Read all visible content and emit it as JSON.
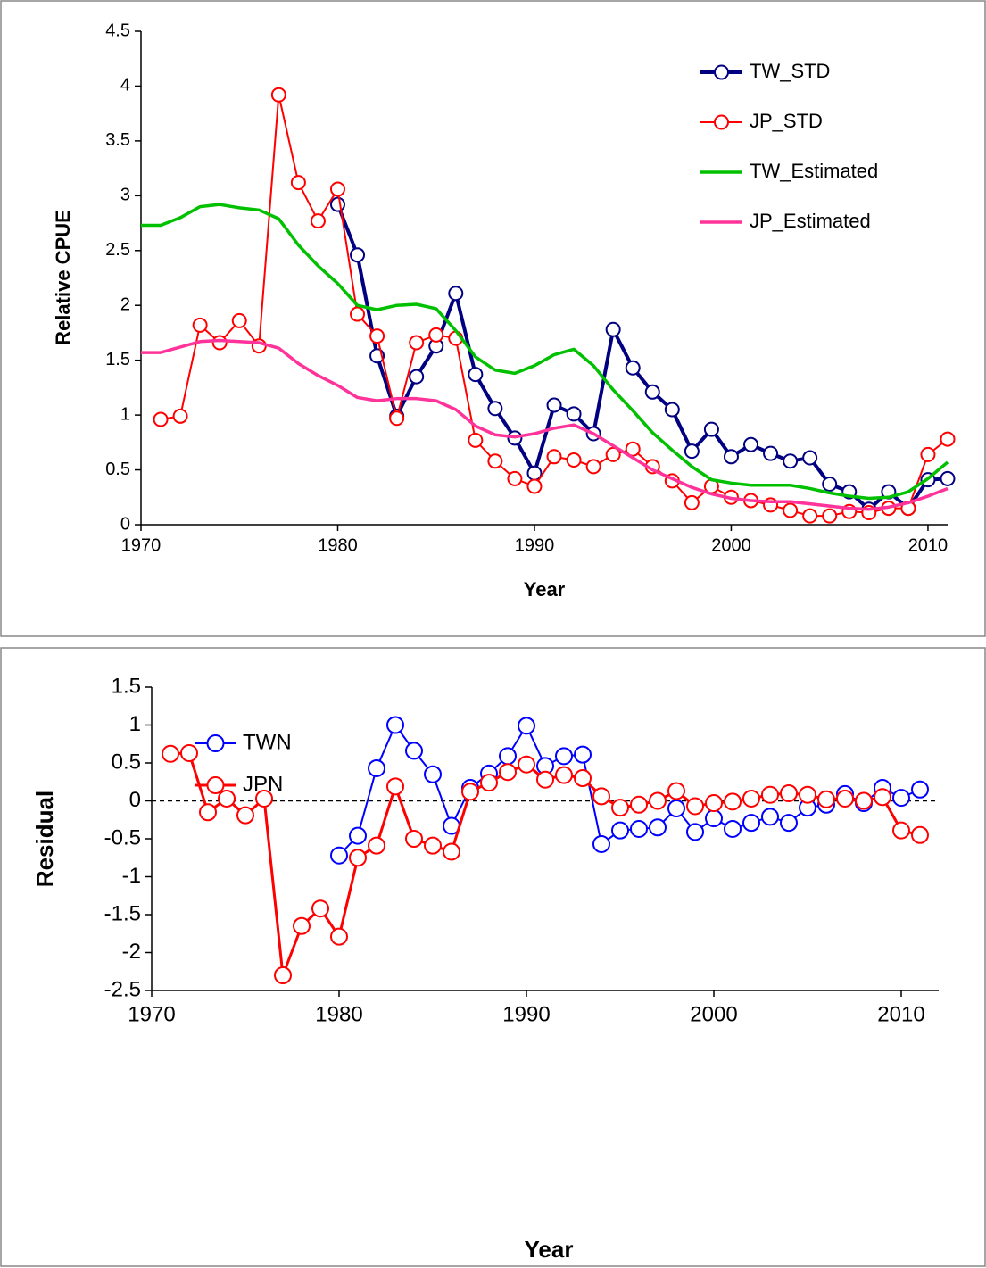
{
  "chart_data": [
    {
      "type": "line",
      "x_label": "Year",
      "y_label": "Relative CPUE",
      "x": [
        1970,
        1971,
        1972,
        1973,
        1974,
        1975,
        1976,
        1977,
        1978,
        1979,
        1980,
        1981,
        1982,
        1983,
        1984,
        1985,
        1986,
        1987,
        1988,
        1989,
        1990,
        1991,
        1992,
        1993,
        1994,
        1995,
        1996,
        1997,
        1998,
        1999,
        2000,
        2001,
        2002,
        2003,
        2004,
        2005,
        2006,
        2007,
        2008,
        2009,
        2010,
        2011
      ],
      "xlim": [
        1970,
        2011
      ],
      "xticks": [
        1970,
        1980,
        1990,
        2000,
        2010
      ],
      "ylim": [
        0,
        4.5
      ],
      "yticks": [
        0,
        0.5,
        1,
        1.5,
        2,
        2.5,
        3,
        3.5,
        4,
        4.5
      ],
      "legend": "upper right",
      "series": [
        {
          "name": "TW_STD",
          "color": "#000080",
          "marker": "circle",
          "values": [
            null,
            null,
            null,
            null,
            null,
            null,
            null,
            null,
            null,
            null,
            2.92,
            2.46,
            1.54,
            0.99,
            1.35,
            1.63,
            2.11,
            1.37,
            1.06,
            0.79,
            0.47,
            1.09,
            1.01,
            0.83,
            1.78,
            1.43,
            1.21,
            1.05,
            0.67,
            0.87,
            0.62,
            0.73,
            0.65,
            0.58,
            0.61,
            0.37,
            0.3,
            0.14,
            0.3,
            0.15,
            0.41,
            0.42
          ]
        },
        {
          "name": "JP_STD",
          "color": "#ff0000",
          "marker": "circle",
          "values": [
            null,
            0.96,
            0.99,
            1.82,
            1.66,
            1.86,
            1.63,
            3.92,
            3.12,
            2.77,
            3.06,
            1.92,
            1.72,
            0.97,
            1.66,
            1.73,
            1.7,
            0.77,
            0.58,
            0.42,
            0.35,
            0.62,
            0.59,
            0.53,
            0.64,
            0.69,
            0.53,
            0.4,
            0.2,
            0.35,
            0.25,
            0.22,
            0.18,
            0.13,
            0.08,
            0.08,
            0.12,
            0.11,
            0.15,
            0.15,
            0.64,
            0.78
          ]
        },
        {
          "name": "TW_Estimated",
          "color": "#00c000",
          "marker": "none",
          "values": [
            2.73,
            2.73,
            2.8,
            2.9,
            2.92,
            2.89,
            2.87,
            2.79,
            2.55,
            2.36,
            2.2,
            2.0,
            1.96,
            2.0,
            2.01,
            1.97,
            1.77,
            1.53,
            1.41,
            1.38,
            1.45,
            1.55,
            1.6,
            1.45,
            1.23,
            1.04,
            0.84,
            0.68,
            0.53,
            0.41,
            0.38,
            0.36,
            0.36,
            0.36,
            0.33,
            0.29,
            0.26,
            0.24,
            0.25,
            0.3,
            0.42,
            0.57
          ]
        },
        {
          "name": "JP_Estimated",
          "color": "#ff3399",
          "marker": "none",
          "values": [
            1.57,
            1.57,
            1.62,
            1.67,
            1.68,
            1.67,
            1.66,
            1.61,
            1.47,
            1.36,
            1.27,
            1.16,
            1.13,
            1.15,
            1.15,
            1.13,
            1.05,
            0.9,
            0.82,
            0.8,
            0.83,
            0.88,
            0.91,
            0.83,
            0.72,
            0.61,
            0.5,
            0.42,
            0.34,
            0.28,
            0.24,
            0.22,
            0.21,
            0.21,
            0.19,
            0.17,
            0.15,
            0.14,
            0.16,
            0.2,
            0.26,
            0.33
          ]
        }
      ]
    },
    {
      "type": "line",
      "x_label": "Year",
      "y_label": "Residual",
      "x": [
        1970,
        1971,
        1972,
        1973,
        1974,
        1975,
        1976,
        1977,
        1978,
        1979,
        1980,
        1981,
        1982,
        1983,
        1984,
        1985,
        1986,
        1987,
        1988,
        1989,
        1990,
        1991,
        1992,
        1993,
        1994,
        1995,
        1996,
        1997,
        1998,
        1999,
        2000,
        2001,
        2002,
        2003,
        2004,
        2005,
        2006,
        2007,
        2008,
        2009,
        2010,
        2011
      ],
      "xlim": [
        1970,
        2012
      ],
      "xticks": [
        1970,
        1980,
        1990,
        2000,
        2010
      ],
      "ylim": [
        -2.5,
        1.5
      ],
      "yticks": [
        -2.5,
        -2,
        -1.5,
        -1,
        -0.5,
        0,
        0.5,
        1,
        1.5
      ],
      "reference_line": 0,
      "legend": "upper left",
      "series": [
        {
          "name": "TWN",
          "color": "#0000ff",
          "marker": "circle",
          "values": [
            null,
            null,
            null,
            null,
            null,
            null,
            null,
            null,
            null,
            null,
            -0.72,
            -0.46,
            0.43,
            1.0,
            0.66,
            0.35,
            -0.33,
            0.17,
            0.36,
            0.59,
            0.99,
            0.46,
            0.59,
            0.61,
            -0.57,
            -0.39,
            -0.37,
            -0.35,
            -0.1,
            -0.41,
            -0.23,
            -0.37,
            -0.29,
            -0.21,
            -0.29,
            -0.09,
            -0.05,
            0.09,
            -0.03,
            0.17,
            0.04,
            0.15
          ]
        },
        {
          "name": "JPN",
          "color": "#ff0000",
          "marker": "circle",
          "values": [
            null,
            0.62,
            0.63,
            -0.15,
            0.03,
            -0.19,
            0.03,
            -2.3,
            -1.65,
            -1.42,
            -1.79,
            -0.75,
            -0.59,
            0.19,
            -0.5,
            -0.59,
            -0.67,
            0.12,
            0.24,
            0.38,
            0.48,
            0.28,
            0.34,
            0.3,
            0.06,
            -0.09,
            -0.05,
            0.0,
            0.13,
            -0.07,
            -0.03,
            -0.01,
            0.03,
            0.08,
            0.1,
            0.08,
            0.02,
            0.03,
            0.0,
            0.05,
            -0.39,
            -0.45
          ]
        }
      ]
    }
  ]
}
